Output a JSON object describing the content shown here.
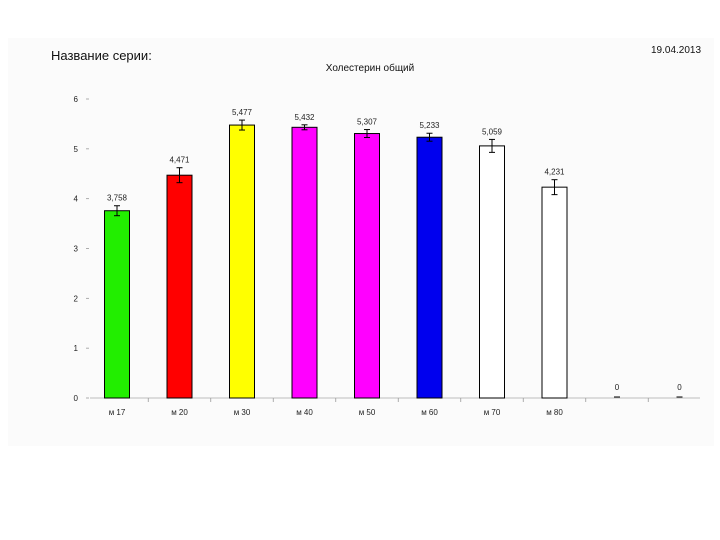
{
  "header": {
    "series_label": "Название серии:",
    "date": "19.04.2013"
  },
  "chart_data": {
    "type": "bar",
    "title": "Холестерин общий",
    "xlabel": "",
    "ylabel": "",
    "ylim": [
      0,
      6
    ],
    "yticks": [
      0,
      1,
      2,
      3,
      4,
      5,
      6
    ],
    "grid": false,
    "categories": [
      "м 17",
      "м 20",
      "м 30",
      "м 40",
      "м 50",
      "м 60",
      "м 70",
      "м 80",
      "",
      ""
    ],
    "values": [
      3.758,
      4.471,
      5.477,
      5.432,
      5.307,
      5.233,
      5.059,
      4.231,
      0,
      0
    ],
    "value_labels": [
      "3,758",
      "4,471",
      "5,477",
      "5,432",
      "5,307",
      "5,233",
      "5,059",
      "4,231",
      "0",
      "0"
    ],
    "errors": [
      0.1,
      0.15,
      0.1,
      0.05,
      0.08,
      0.08,
      0.13,
      0.15,
      0,
      0
    ],
    "colors": [
      "#22ee00",
      "#ff0000",
      "#ffff00",
      "#ff00ff",
      "#ff00ff",
      "#0000ee",
      "#ffffff",
      "#ffffff",
      "#ffffff",
      "#ffffff"
    ]
  }
}
